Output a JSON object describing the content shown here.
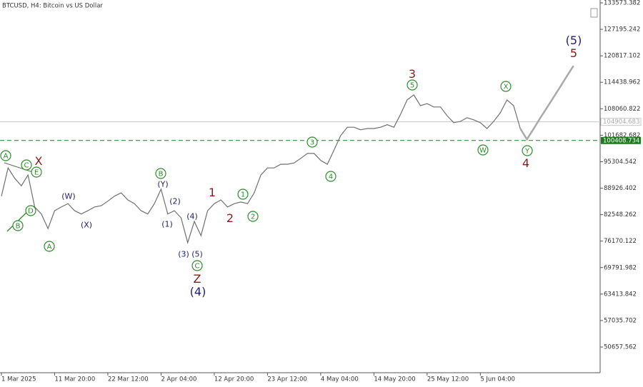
{
  "chart_data": {
    "type": "line",
    "title": "BTCUSD, H4:  Bitcoin vs US Dollar",
    "categories": [
      "1 Mar 2025",
      null,
      null,
      null,
      null,
      null,
      null,
      null,
      "11 Mar 20:00",
      null,
      null,
      null,
      null,
      null,
      null,
      null,
      "22 Mar 12:00",
      null,
      null,
      null,
      null,
      null,
      null,
      null,
      "2 Apr 04:00",
      null,
      null,
      null,
      null,
      null,
      null,
      null,
      "12 Apr 20:00",
      null,
      null,
      null,
      null,
      null,
      null,
      null,
      "23 Apr 12:00",
      null,
      null,
      null,
      null,
      null,
      null,
      null,
      "4 May 04:00",
      null,
      null,
      null,
      null,
      null,
      null,
      null,
      "14 May 20:00",
      null,
      null,
      null,
      null,
      null,
      null,
      null,
      "25 May 12:00",
      null,
      null,
      null,
      null,
      null,
      null,
      null,
      "5 Jun 04:00",
      null,
      null,
      null,
      null,
      null,
      null,
      null,
      null,
      null,
      null,
      null,
      null,
      null,
      null
    ],
    "series": [
      {
        "color": "#707070",
        "values": [
          87000,
          93800,
          91300,
          89500,
          92100,
          84400,
          82700,
          79200,
          83500,
          84400,
          85200,
          83500,
          82700,
          83500,
          84400,
          84700,
          85800,
          87000,
          87800,
          86100,
          85200,
          83500,
          82700,
          85200,
          88700,
          82700,
          83500,
          81800,
          75800,
          80900,
          77500,
          83500,
          85200,
          86100,
          84400,
          85200,
          85600,
          85200,
          87800,
          92100,
          93800,
          93800,
          94700,
          94700,
          95000,
          96100,
          97300,
          97300,
          95600,
          94700,
          98100,
          101600,
          103600,
          103600,
          103000,
          103300,
          103300,
          103600,
          104200,
          103600,
          106700,
          110200,
          111400,
          108800,
          109300,
          108500,
          108500,
          106400,
          104700,
          105000,
          105900,
          105400,
          104700,
          103300,
          105000,
          107100,
          110200,
          108800,
          103300,
          null,
          null,
          null,
          null,
          null,
          null,
          null,
          null
        ]
      },
      {
        "color": "#aaaaaa",
        "values": [
          null,
          null,
          null,
          null,
          null,
          null,
          null,
          null,
          null,
          null,
          null,
          null,
          null,
          null,
          null,
          null,
          null,
          null,
          null,
          null,
          null,
          null,
          null,
          null,
          null,
          null,
          null,
          null,
          null,
          null,
          null,
          null,
          null,
          null,
          null,
          null,
          null,
          null,
          null,
          null,
          null,
          null,
          null,
          null,
          null,
          null,
          null,
          null,
          null,
          null,
          null,
          null,
          null,
          null,
          null,
          null,
          null,
          null,
          null,
          null,
          null,
          null,
          null,
          null,
          null,
          null,
          null,
          null,
          null,
          null,
          null,
          null,
          null,
          null,
          null,
          null,
          null,
          null,
          103300,
          100700,
          103200,
          105800,
          108300,
          110800,
          113300,
          115900,
          118400
        ]
      }
    ],
    "ylim": [
      44465,
      134261
    ],
    "yticks": [
      133573.382,
      127195.242,
      120817.102,
      114438.962,
      108060.822,
      101682.682,
      95304.542,
      88926.402,
      82548.262,
      76170.122,
      69791.982,
      63413.842,
      57035.702,
      50657.562
    ],
    "price_lines": [
      {
        "value": 104904.683,
        "color": "#c8c8c8",
        "dashed": false
      },
      {
        "value": 100408.734,
        "color": "#1f7a1f",
        "dashed": true
      }
    ],
    "annotations": [
      {
        "text": "A",
        "color": "#2e8b2e",
        "circled": true
      },
      {
        "text": "C",
        "color": "#2e8b2e",
        "circled": true
      },
      {
        "text": "X",
        "color": "#8b1a1a",
        "circled": false
      },
      {
        "text": "E",
        "color": "#2e8b2e",
        "circled": true
      },
      {
        "text": "D",
        "color": "#2e8b2e",
        "circled": true
      },
      {
        "text": "B",
        "color": "#2e8b2e",
        "circled": true
      },
      {
        "text": "A",
        "color": "#2e8b2e",
        "circled": true
      },
      {
        "text": "(W)",
        "color": "#1f1f6e",
        "circled": false
      },
      {
        "text": "(X)",
        "color": "#1f1f6e",
        "circled": false
      },
      {
        "text": "B",
        "color": "#2e8b2e",
        "circled": true
      },
      {
        "text": "(Y)",
        "color": "#1f1f6e",
        "circled": false
      },
      {
        "text": "(2)",
        "color": "#1f1f6e",
        "circled": false
      },
      {
        "text": "(4)",
        "color": "#1f1f6e",
        "circled": false
      },
      {
        "text": "(1)",
        "color": "#1f1f6e",
        "circled": false
      },
      {
        "text": "(3)",
        "color": "#1f1f6e",
        "circled": false
      },
      {
        "text": "(5)",
        "color": "#1f1f6e",
        "circled": false
      },
      {
        "text": "C",
        "color": "#2e8b2e",
        "circled": true
      },
      {
        "text": "Z",
        "color": "#8b1a1a",
        "circled": false
      },
      {
        "text": "(4)",
        "color": "#1f1f6e",
        "circled": false
      },
      {
        "text": "1",
        "color": "#8b1a1a",
        "circled": false
      },
      {
        "text": "1",
        "color": "#2e8b2e",
        "circled": true
      },
      {
        "text": "2",
        "color": "#8b1a1a",
        "circled": false
      },
      {
        "text": "2",
        "color": "#2e8b2e",
        "circled": true
      },
      {
        "text": "3",
        "color": "#2e8b2e",
        "circled": true
      },
      {
        "text": "4",
        "color": "#2e8b2e",
        "circled": true
      },
      {
        "text": "3",
        "color": "#8b1a1a",
        "circled": false
      },
      {
        "text": "5",
        "color": "#2e8b2e",
        "circled": true
      },
      {
        "text": "X",
        "color": "#2e8b2e",
        "circled": true
      },
      {
        "text": "W",
        "color": "#2e8b2e",
        "circled": true
      },
      {
        "text": "Y",
        "color": "#2e8b2e",
        "circled": true
      },
      {
        "text": "4",
        "color": "#8b1a1a",
        "circled": false
      },
      {
        "text": "(5)",
        "color": "#1f1f6e",
        "circled": false
      },
      {
        "text": "5",
        "color": "#8b1a1a",
        "circled": false
      }
    ]
  }
}
